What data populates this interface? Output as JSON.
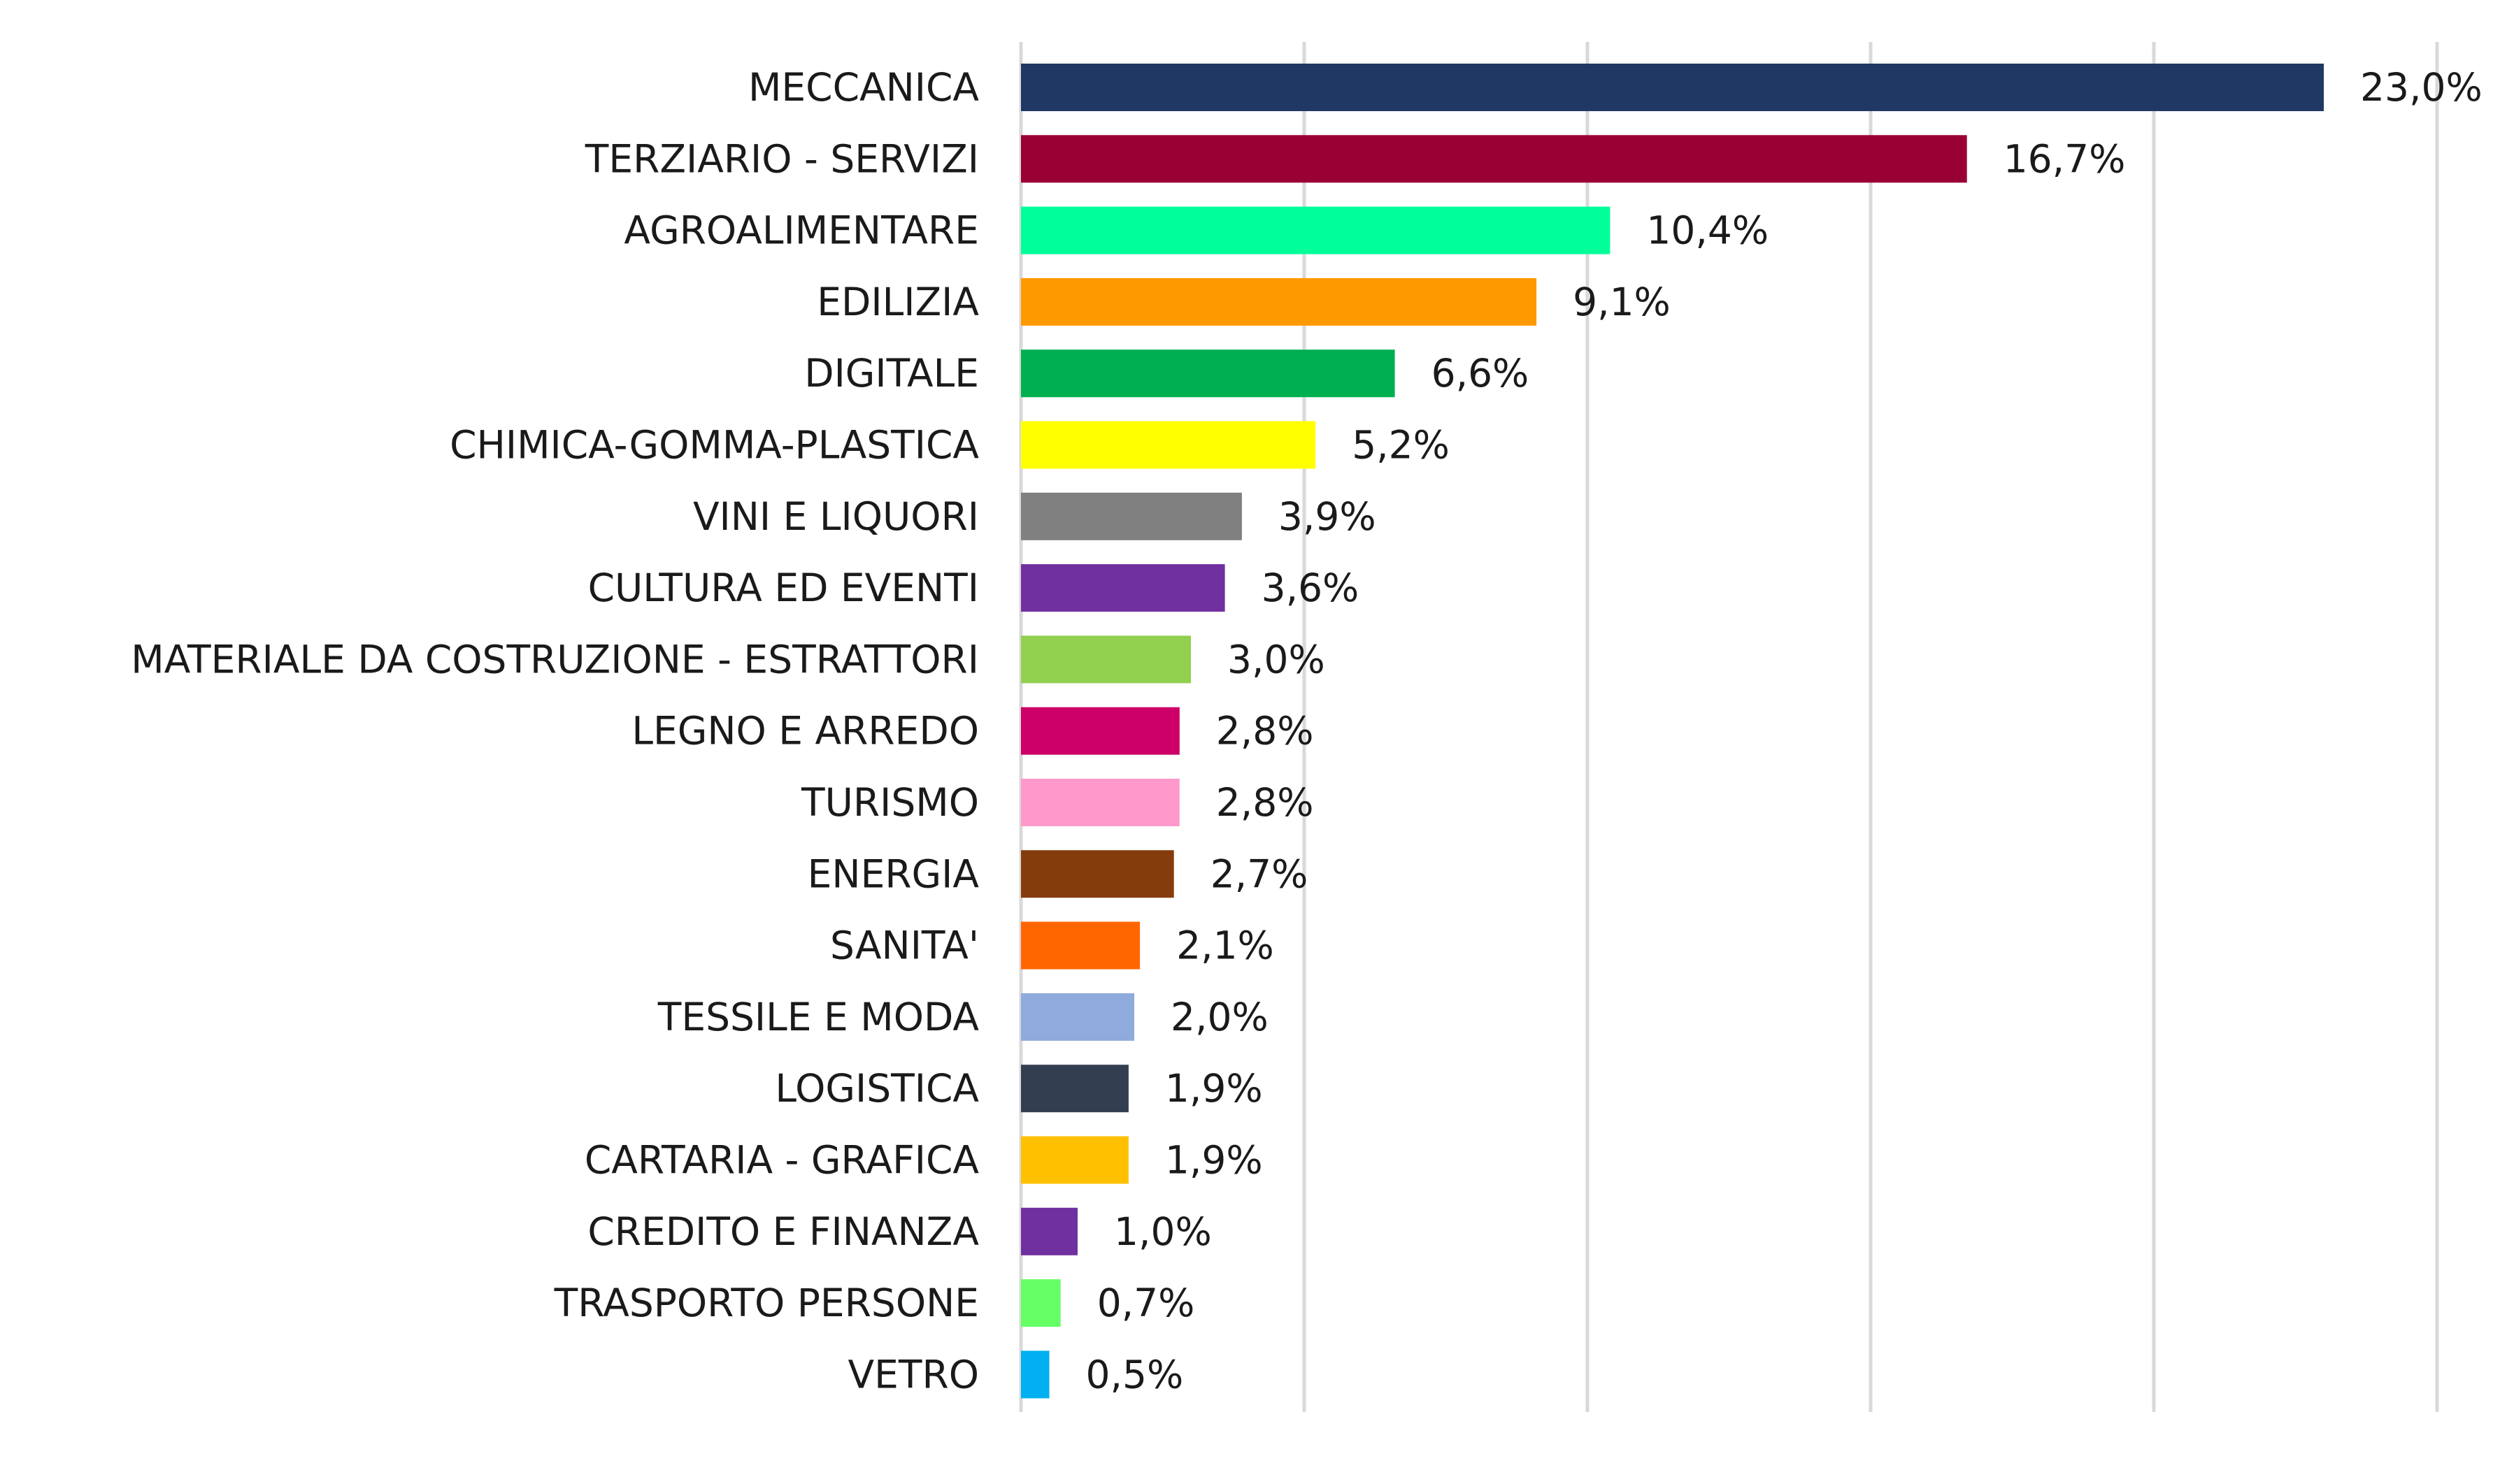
{
  "chart_data": {
    "type": "bar",
    "orientation": "horizontal",
    "title": "",
    "xlabel": "",
    "ylabel": "",
    "xlim": [
      0,
      25
    ],
    "grid": true,
    "legend": "none",
    "categories": [
      "MECCANICA",
      "TERZIARIO - SERVIZI",
      "AGROALIMENTARE",
      "EDILIZIA",
      "DIGITALE",
      "CHIMICA-GOMMA-PLASTICA",
      "VINI E LIQUORI",
      "CULTURA ED EVENTI",
      "MATERIALE DA COSTRUZIONE - ESTRATTORI",
      "LEGNO E ARREDO",
      "TURISMO",
      "ENERGIA",
      "SANITA'",
      "TESSILE E MODA",
      "LOGISTICA",
      "CARTARIA - GRAFICA",
      "CREDITO E FINANZA",
      "TRASPORTO PERSONE",
      "VETRO"
    ],
    "values": [
      23.0,
      16.7,
      10.4,
      9.1,
      6.6,
      5.2,
      3.9,
      3.6,
      3.0,
      2.8,
      2.8,
      2.7,
      2.1,
      2.0,
      1.9,
      1.9,
      1.0,
      0.7,
      0.5
    ],
    "value_labels": [
      "23,0%",
      "16,7%",
      "10,4%",
      "9,1%",
      "6,6%",
      "5,2%",
      "3,9%",
      "3,6%",
      "3,0%",
      "2,8%",
      "2,8%",
      "2,7%",
      "2,1%",
      "2,0%",
      "1,9%",
      "1,9%",
      "1,0%",
      "0,7%",
      "0,5%"
    ],
    "colors": [
      "#203864",
      "#990033",
      "#00FF99",
      "#FF9900",
      "#00B050",
      "#FFFF00",
      "#808080",
      "#7030A0",
      "#92D050",
      "#CC0066",
      "#FF99CC",
      "#843C0C",
      "#FF6600",
      "#8FAADC",
      "#333F50",
      "#FFC000",
      "#7030A0",
      "#66FF66",
      "#00B0F0"
    ],
    "gridline_values": [
      0,
      5,
      10,
      15,
      20,
      25
    ]
  }
}
